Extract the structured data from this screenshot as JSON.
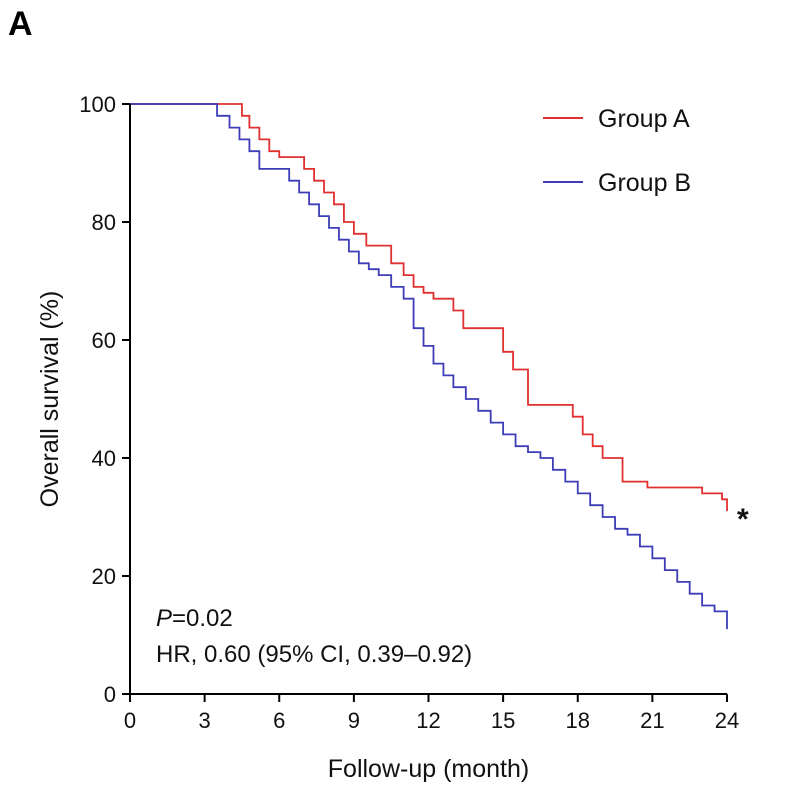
{
  "panel_label": "A",
  "chart_data": {
    "type": "line",
    "step": true,
    "xlabel": "Follow-up (month)",
    "ylabel": "Overall survival (%)",
    "xlim": [
      0,
      24
    ],
    "ylim": [
      0,
      100
    ],
    "xticks": [
      0,
      3,
      6,
      9,
      12,
      15,
      18,
      21,
      24
    ],
    "yticks": [
      0,
      20,
      40,
      60,
      80,
      100
    ],
    "grid": false,
    "legend": "top-right",
    "significance_marker": "*",
    "annotations": [
      {
        "italic": "P",
        "text": "=0.02"
      },
      {
        "text": "HR, 0.60 (95% CI, 0.39–0.92)"
      }
    ],
    "series": [
      {
        "name": "Group A",
        "color": "#e03030",
        "x": [
          0,
          4.5,
          4.8,
          5.2,
          5.6,
          6.0,
          6.4,
          7.0,
          7.4,
          7.8,
          8.2,
          8.6,
          9.0,
          9.5,
          10.0,
          10.5,
          11.0,
          11.4,
          11.8,
          12.2,
          13.0,
          13.4,
          15.0,
          15.4,
          16.0,
          17.0,
          17.8,
          18.2,
          18.6,
          19.0,
          19.8,
          20.0,
          20.8,
          23.0,
          23.8,
          24.0
        ],
        "y": [
          100,
          98,
          96,
          94,
          92,
          91,
          91,
          89,
          87,
          85,
          83,
          80,
          78,
          76,
          76,
          73,
          71,
          69,
          68,
          67,
          65,
          62,
          58,
          55,
          49,
          49,
          47,
          44,
          42,
          40,
          36,
          36,
          35,
          34,
          33,
          31
        ]
      },
      {
        "name": "Group B",
        "color": "#3d3db8",
        "x": [
          0,
          3.0,
          3.5,
          4.0,
          4.4,
          4.8,
          5.2,
          5.6,
          6.0,
          6.4,
          6.8,
          7.2,
          7.6,
          8.0,
          8.4,
          8.8,
          9.2,
          9.6,
          10.0,
          10.5,
          11.0,
          11.4,
          11.8,
          12.2,
          12.6,
          13.0,
          13.5,
          14.0,
          14.5,
          15.0,
          15.5,
          16.0,
          16.5,
          17.0,
          17.5,
          18.0,
          18.5,
          19.0,
          19.5,
          20.0,
          20.5,
          21.0,
          21.5,
          22.0,
          22.5,
          23.0,
          23.5,
          24.0
        ],
        "y": [
          100,
          100,
          98,
          96,
          94,
          92,
          89,
          89,
          89,
          87,
          85,
          83,
          81,
          79,
          77,
          75,
          73,
          72,
          71,
          69,
          67,
          62,
          59,
          56,
          54,
          52,
          50,
          48,
          46,
          44,
          42,
          41,
          40,
          38,
          36,
          34,
          32,
          30,
          28,
          27,
          25,
          23,
          21,
          19,
          17,
          15,
          14,
          11
        ]
      }
    ]
  }
}
